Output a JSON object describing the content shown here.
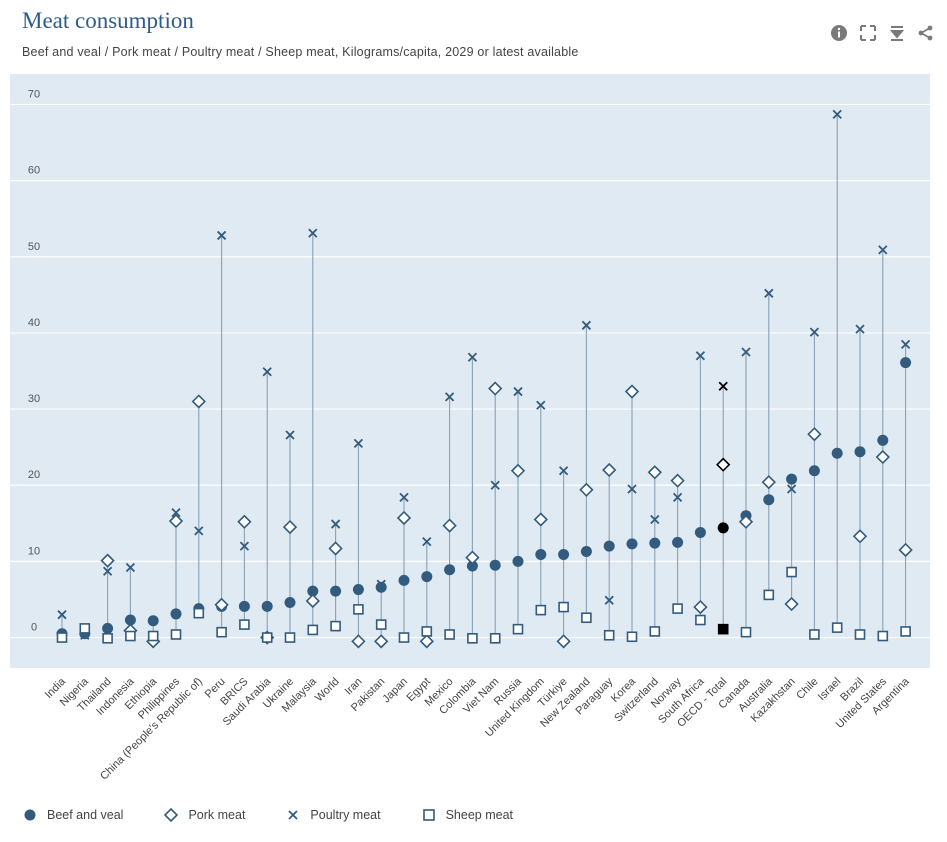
{
  "title": "Meat consumption",
  "subtitle": "Beef and veal / Pork meat / Poultry meat / Sheep meat, Kilograms/capita, 2029 or latest available",
  "toolbar": [
    "info-icon",
    "fullscreen-icon",
    "download-icon",
    "share-icon"
  ],
  "colors": {
    "plot_bg": "#dfeaf3",
    "series": "#325b7d",
    "highlight": "#000000",
    "stem": "#8aa0b4",
    "grid": "#ffffff"
  },
  "chart_data": {
    "type": "dot",
    "ylim": [
      -4,
      74
    ],
    "yticks": [
      0,
      10,
      20,
      30,
      40,
      50,
      60,
      70
    ],
    "highlight_category": "OECD - Total",
    "categories": [
      "India",
      "Nigeria",
      "Thailand",
      "Indonesia",
      "Ethiopia",
      "Philippines",
      "China (People's Republic of)",
      "Peru",
      "BRICS",
      "Saudi Arabia",
      "Ukraine",
      "Malaysia",
      "World",
      "Iran",
      "Pakistan",
      "Japan",
      "Egypt",
      "Mexico",
      "Colombia",
      "Viet Nam",
      "Russia",
      "United Kingdom",
      "Türkiye",
      "New Zealand",
      "Paraguay",
      "Korea",
      "Switzerland",
      "Norway",
      "South Africa",
      "OECD - Total",
      "Canada",
      "Australia",
      "Kazakhstan",
      "Chile",
      "Israel",
      "Brazil",
      "United States",
      "Argentina"
    ],
    "series": [
      {
        "name": "Beef and veal",
        "marker": "circle",
        "values": [
          0.5,
          0.5,
          1.2,
          2.3,
          2.2,
          3.1,
          3.8,
          4.1,
          4.1,
          4.1,
          4.6,
          6.1,
          6.1,
          6.3,
          6.6,
          7.5,
          8.0,
          8.9,
          9.4,
          9.5,
          10.0,
          10.9,
          10.9,
          11.3,
          12.0,
          12.3,
          12.4,
          12.5,
          13.8,
          14.4,
          16.0,
          18.1,
          20.8,
          21.9,
          24.2,
          24.4,
          25.9,
          36.1
        ]
      },
      {
        "name": "Pork meat",
        "marker": "diamond",
        "values": [
          null,
          null,
          10.1,
          0.9,
          -0.5,
          15.3,
          31.0,
          4.3,
          15.2,
          0.0,
          14.5,
          4.8,
          11.7,
          -0.5,
          -0.5,
          15.7,
          -0.5,
          14.7,
          10.5,
          32.7,
          21.9,
          15.5,
          -0.5,
          19.4,
          22.0,
          32.3,
          21.7,
          20.6,
          4.0,
          22.7,
          15.2,
          20.4,
          4.4,
          26.7,
          null,
          13.3,
          23.7,
          11.5
        ]
      },
      {
        "name": "Poultry meat",
        "marker": "cross",
        "values": [
          3.0,
          0.3,
          8.7,
          9.2,
          null,
          16.4,
          14.0,
          52.8,
          12.0,
          34.9,
          26.6,
          53.1,
          14.9,
          25.5,
          7.0,
          18.4,
          12.6,
          31.6,
          36.8,
          20.0,
          32.3,
          30.5,
          21.9,
          41.0,
          4.9,
          19.5,
          15.5,
          18.4,
          37.0,
          33.0,
          37.5,
          45.2,
          19.5,
          40.1,
          68.7,
          40.5,
          50.9,
          38.5
        ]
      },
      {
        "name": "Sheep meat",
        "marker": "square",
        "values": [
          0.0,
          1.2,
          -0.1,
          0.2,
          0.2,
          0.4,
          3.2,
          0.7,
          1.7,
          0.0,
          0.0,
          1.0,
          1.5,
          3.7,
          1.7,
          0.0,
          0.8,
          0.4,
          -0.1,
          -0.1,
          1.1,
          3.6,
          4.0,
          2.6,
          0.3,
          0.1,
          0.8,
          3.8,
          2.3,
          1.1,
          0.7,
          5.6,
          8.6,
          0.4,
          1.3,
          0.4,
          0.2,
          0.8
        ]
      }
    ]
  }
}
